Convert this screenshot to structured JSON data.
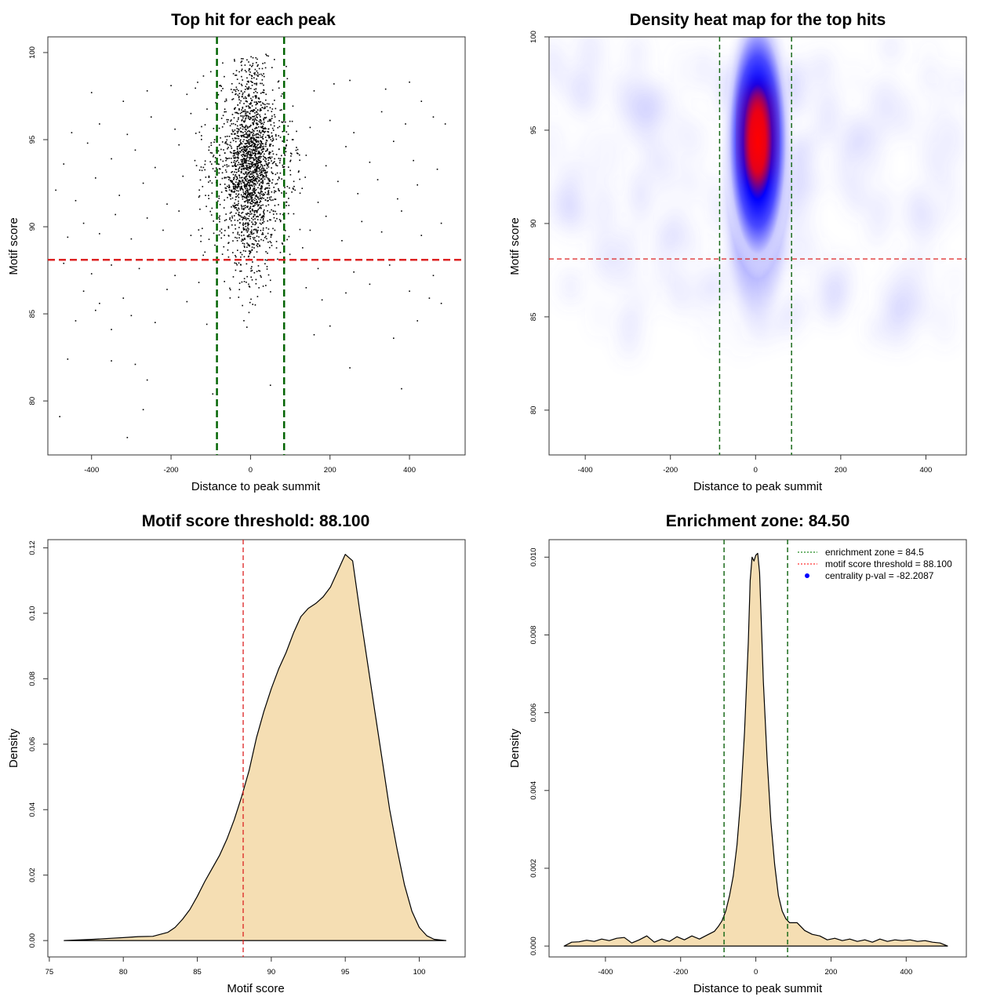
{
  "chart_data": [
    {
      "id": "scatter",
      "type": "scatter",
      "title": "Top hit for each peak",
      "xlabel": "Distance to peak summit",
      "ylabel": "Motif score",
      "xlim": [
        -510,
        540
      ],
      "ylim": [
        76.9,
        100.9
      ],
      "xticks": [
        -400,
        -200,
        0,
        200,
        400
      ],
      "yticks": [
        80,
        85,
        90,
        95,
        100
      ],
      "vlines": [
        -84.5,
        84.5
      ],
      "hline": 88.1,
      "vline_color": "#006400",
      "hline_color": "#dd2222",
      "point_color": "#000000",
      "background_points": [
        [
          -480,
          79.1
        ],
        [
          -310,
          77.9
        ],
        [
          -270,
          79.5
        ],
        [
          -460,
          82.4
        ],
        [
          -290,
          82.1
        ],
        [
          -260,
          81.2
        ],
        [
          -350,
          82.3
        ],
        [
          -95,
          80.4
        ],
        [
          50,
          80.9
        ],
        [
          250,
          81.9
        ],
        [
          380,
          80.7
        ],
        [
          -440,
          84.6
        ],
        [
          -350,
          84.1
        ],
        [
          -390,
          85.2
        ],
        [
          -240,
          84.5
        ],
        [
          -300,
          84.9
        ],
        [
          -110,
          84.4
        ],
        [
          160,
          83.8
        ],
        [
          200,
          84.3
        ],
        [
          360,
          83.6
        ],
        [
          420,
          84.6
        ],
        [
          480,
          85.6
        ],
        [
          -420,
          86.3
        ],
        [
          -380,
          85.6
        ],
        [
          -320,
          85.9
        ],
        [
          -210,
          86.4
        ],
        [
          -160,
          85.7
        ],
        [
          -130,
          86.8
        ],
        [
          140,
          86.5
        ],
        [
          180,
          85.8
        ],
        [
          240,
          86.2
        ],
        [
          300,
          86.7
        ],
        [
          400,
          86.3
        ],
        [
          450,
          85.9
        ],
        [
          -470,
          87.9
        ],
        [
          -400,
          87.3
        ],
        [
          -350,
          87.8
        ],
        [
          -280,
          87.6
        ],
        [
          -190,
          87.2
        ],
        [
          170,
          87.6
        ],
        [
          260,
          87.4
        ],
        [
          350,
          87.8
        ],
        [
          460,
          87.2
        ],
        [
          -460,
          89.4
        ],
        [
          -420,
          90.2
        ],
        [
          -380,
          89.6
        ],
        [
          -340,
          90.7
        ],
        [
          -300,
          89.3
        ],
        [
          -260,
          90.5
        ],
        [
          -220,
          89.8
        ],
        [
          -180,
          90.9
        ],
        [
          -150,
          89.5
        ],
        [
          150,
          89.8
        ],
        [
          190,
          90.6
        ],
        [
          230,
          89.2
        ],
        [
          280,
          90.3
        ],
        [
          330,
          89.7
        ],
        [
          380,
          90.9
        ],
        [
          430,
          89.5
        ],
        [
          480,
          90.2
        ],
        [
          -490,
          92.1
        ],
        [
          -440,
          91.5
        ],
        [
          -390,
          92.8
        ],
        [
          -330,
          91.8
        ],
        [
          -270,
          92.5
        ],
        [
          -210,
          91.3
        ],
        [
          -170,
          92.9
        ],
        [
          -130,
          91.7
        ],
        [
          130,
          92.2
        ],
        [
          170,
          91.4
        ],
        [
          220,
          92.6
        ],
        [
          270,
          91.9
        ],
        [
          320,
          92.7
        ],
        [
          370,
          91.6
        ],
        [
          420,
          92.4
        ],
        [
          470,
          93.3
        ],
        [
          -470,
          93.6
        ],
        [
          -410,
          94.8
        ],
        [
          -350,
          93.9
        ],
        [
          -290,
          94.4
        ],
        [
          -240,
          93.4
        ],
        [
          -180,
          94.7
        ],
        [
          -140,
          93.8
        ],
        [
          140,
          94.1
        ],
        [
          190,
          93.5
        ],
        [
          240,
          94.6
        ],
        [
          300,
          93.7
        ],
        [
          360,
          94.9
        ],
        [
          410,
          93.8
        ],
        [
          490,
          95.9
        ],
        [
          -450,
          95.4
        ],
        [
          -380,
          95.9
        ],
        [
          -310,
          95.3
        ],
        [
          -250,
          96.3
        ],
        [
          -190,
          95.6
        ],
        [
          -150,
          96.5
        ],
        [
          150,
          95.7
        ],
        [
          200,
          96.1
        ],
        [
          260,
          95.4
        ],
        [
          330,
          96.6
        ],
        [
          390,
          95.9
        ],
        [
          460,
          96.3
        ],
        [
          -400,
          97.7
        ],
        [
          -320,
          97.2
        ],
        [
          -260,
          97.8
        ],
        [
          -200,
          98.1
        ],
        [
          -160,
          97.6
        ],
        [
          160,
          97.8
        ],
        [
          210,
          98.2
        ],
        [
          250,
          98.4
        ],
        [
          340,
          97.9
        ],
        [
          400,
          98.3
        ],
        [
          430,
          97.2
        ],
        [
          -100,
          98.9
        ],
        [
          -70,
          99.4
        ],
        [
          60,
          99.6
        ],
        [
          90,
          99.2
        ]
      ],
      "core_x_sd": 27,
      "core_count": 1500,
      "mid_count": 600
    },
    {
      "id": "heatmap",
      "type": "heatmap",
      "title": "Density heat map for the top hits",
      "xlabel": "Distance to peak summit",
      "ylabel": "Motif score",
      "xlim": [
        -485,
        495
      ],
      "ylim": [
        77.6,
        100
      ],
      "xticks": [
        -400,
        -200,
        0,
        200,
        400
      ],
      "yticks": [
        80,
        85,
        90,
        95,
        100
      ],
      "vlines": [
        -84.5,
        84.5
      ],
      "hline": 88.1,
      "peak_center": [
        5,
        94.8
      ],
      "color_ramp": [
        "#ffffff",
        "#0000ff",
        "#ff0000"
      ]
    },
    {
      "id": "score-density",
      "type": "area",
      "title": "Motif score threshold: 88.100",
      "xlabel": "Motif score",
      "ylabel": "Density",
      "xlim": [
        74.9,
        103.1
      ],
      "ylim": [
        -0.005,
        0.1225
      ],
      "xticks": [
        75,
        80,
        85,
        90,
        95,
        100
      ],
      "yticks": [
        0,
        0.02,
        0.04,
        0.06,
        0.08,
        0.1,
        0.12
      ],
      "ytick_labels": [
        "0.00",
        "0.02",
        "0.04",
        "0.06",
        "0.08",
        "0.10",
        "0.12"
      ],
      "vline": 88.1,
      "fill_color": "#f5deb3",
      "x": [
        76,
        78,
        80,
        81,
        82,
        83,
        83.5,
        84,
        84.5,
        85,
        85.5,
        86,
        86.5,
        87,
        87.5,
        88,
        88.5,
        89,
        89.5,
        90,
        90.5,
        91,
        91.5,
        92,
        92.5,
        93,
        93.5,
        94,
        94.5,
        95,
        95.5,
        96,
        96.5,
        97,
        97.5,
        98,
        98.5,
        99,
        99.5,
        100,
        100.5,
        101,
        101.8
      ],
      "y": [
        0,
        0.0004,
        0.0009,
        0.0012,
        0.0013,
        0.0025,
        0.004,
        0.0065,
        0.0095,
        0.0135,
        0.018,
        0.022,
        0.026,
        0.031,
        0.037,
        0.044,
        0.052,
        0.062,
        0.07,
        0.077,
        0.083,
        0.088,
        0.094,
        0.099,
        0.1015,
        0.103,
        0.105,
        0.108,
        0.113,
        0.118,
        0.116,
        0.1,
        0.085,
        0.07,
        0.055,
        0.04,
        0.028,
        0.017,
        0.009,
        0.004,
        0.0015,
        0.0004,
        0
      ]
    },
    {
      "id": "position-density",
      "type": "area",
      "title": "Enrichment zone: 84.50",
      "xlabel": "Distance to peak summit",
      "ylabel": "Density",
      "xlim": [
        -550,
        560
      ],
      "ylim": [
        -0.00028,
        0.01045
      ],
      "xticks": [
        -400,
        -200,
        0,
        200,
        400
      ],
      "yticks": [
        0,
        0.002,
        0.004,
        0.006,
        0.008,
        0.01
      ],
      "ytick_labels": [
        "0.000",
        "0.002",
        "0.004",
        "0.006",
        "0.008",
        "0.010"
      ],
      "vlines": [
        -84.5,
        84.5
      ],
      "fill_color": "#f5deb3",
      "x": [
        -510,
        -490,
        -470,
        -450,
        -430,
        -410,
        -390,
        -370,
        -350,
        -330,
        -310,
        -290,
        -270,
        -250,
        -230,
        -210,
        -190,
        -170,
        -150,
        -130,
        -110,
        -100,
        -90,
        -80,
        -70,
        -60,
        -50,
        -40,
        -30,
        -20,
        -15,
        -10,
        -5,
        0,
        5,
        10,
        15,
        20,
        30,
        40,
        50,
        60,
        70,
        80,
        90,
        100,
        110,
        130,
        150,
        170,
        190,
        210,
        230,
        250,
        270,
        290,
        310,
        330,
        350,
        370,
        390,
        410,
        430,
        450,
        470,
        490,
        510
      ],
      "y": [
        0,
        0.0001,
        0.00011,
        0.00015,
        0.00012,
        0.00018,
        0.00014,
        0.0002,
        0.00022,
        8e-05,
        0.00016,
        0.00026,
        0.0001,
        0.00018,
        0.00012,
        0.00024,
        0.00016,
        0.00026,
        0.00018,
        0.00028,
        0.00038,
        0.0005,
        0.00065,
        0.0009,
        0.0013,
        0.0018,
        0.0026,
        0.0038,
        0.0055,
        0.0078,
        0.0094,
        0.01,
        0.0099,
        0.01005,
        0.0101,
        0.0096,
        0.0082,
        0.0068,
        0.0048,
        0.0032,
        0.0021,
        0.0013,
        0.0009,
        0.0007,
        0.0006,
        0.0006,
        0.0006,
        0.0004,
        0.0003,
        0.00026,
        0.00016,
        0.0002,
        0.00014,
        0.00018,
        0.00012,
        0.00016,
        0.0001,
        0.00018,
        0.00012,
        0.00016,
        0.00014,
        0.00016,
        0.00012,
        0.00014,
        0.0001,
        8e-05,
        0
      ]
    }
  ],
  "legend": {
    "items": [
      {
        "label": "enrichment zone = 84.5",
        "color": "#228b22",
        "style": "dotted-line"
      },
      {
        "label": "motif score threshold = 88.100",
        "color": "#ff3333",
        "style": "dotted-line"
      },
      {
        "label": "centrality p-val = -82.2087",
        "color": "#0000ff",
        "style": "dot"
      }
    ]
  }
}
